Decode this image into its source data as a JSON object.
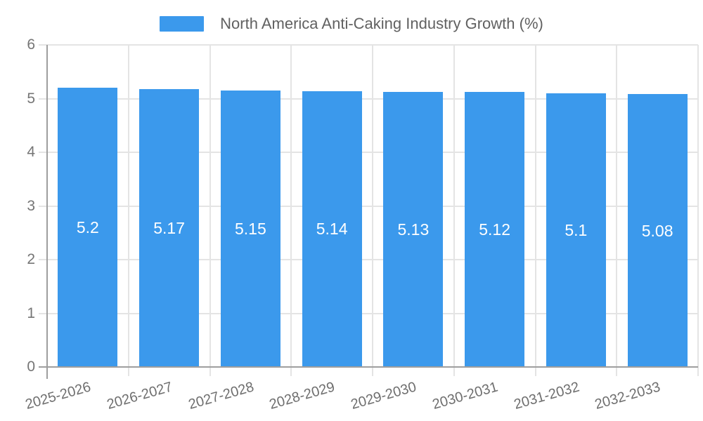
{
  "chart_data": {
    "type": "bar",
    "title": "North America Anti-Caking Industry Growth (%)",
    "legend": {
      "position": "top",
      "items": [
        {
          "label": "North America Anti-Caking Industry Growth (%)",
          "color": "#3B99EC"
        }
      ]
    },
    "categories": [
      "2025-2026",
      "2026-2027",
      "2027-2028",
      "2028-2029",
      "2029-2030",
      "2030-2031",
      "2031-2032",
      "2032-2033"
    ],
    "series": [
      {
        "name": "North America Anti-Caking Industry Growth (%)",
        "values": [
          5.2,
          5.17,
          5.15,
          5.14,
          5.13,
          5.12,
          5.1,
          5.08
        ]
      }
    ],
    "bar_value_labels": [
      "5.2",
      "5.17",
      "5.15",
      "5.14",
      "5.13",
      "5.12",
      "5.1",
      "5.08"
    ],
    "xlabel": "",
    "ylabel": "",
    "ylim": [
      0,
      6
    ],
    "y_ticks": [
      "0",
      "1",
      "2",
      "3",
      "4",
      "5",
      "6"
    ],
    "grid": true,
    "legend_position": "top",
    "colors": {
      "bar": "#3B99EC",
      "grid": "#e4e4e4",
      "axis": "#9e9e9e",
      "y_tick_text": "#757575",
      "x_tick_text": "#6e6e6e",
      "legend_text": "#616161",
      "bar_value_text": "#ffffff",
      "background": "#ffffff"
    }
  }
}
